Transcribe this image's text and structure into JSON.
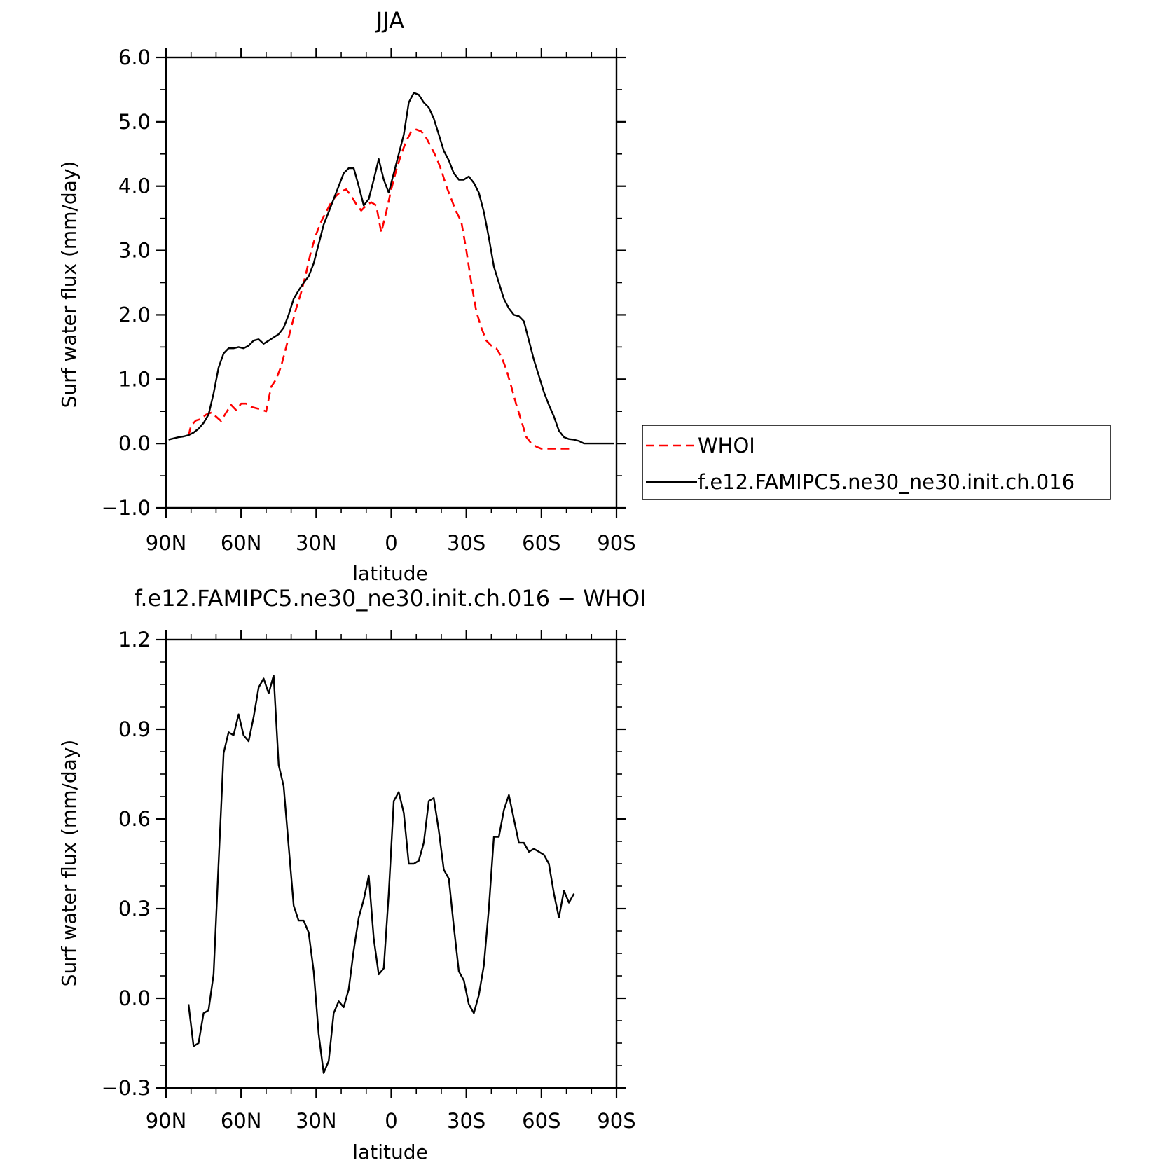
{
  "chart_data": [
    {
      "type": "line",
      "title": "JJA",
      "xlabel": "latitude",
      "ylabel": "Surf water flux (mm/day)",
      "xlim": [
        90,
        -90
      ],
      "ylim": [
        -1.0,
        6.0
      ],
      "xticks": [
        90,
        60,
        30,
        0,
        -30,
        -60,
        -90
      ],
      "xtick_labels": [
        "90N",
        "60N",
        "30N",
        "0",
        "30S",
        "60S",
        "90S"
      ],
      "yticks": [
        -1.0,
        0.0,
        1.0,
        2.0,
        3.0,
        4.0,
        5.0,
        6.0
      ],
      "ytick_labels": [
        "−1.0",
        "0.0",
        "1.0",
        "2.0",
        "3.0",
        "4.0",
        "5.0",
        "6.0"
      ],
      "legend": "right",
      "series": [
        {
          "name": "WHOI",
          "color": "#ff0000",
          "dash": "dashed",
          "x": [
            81,
            80,
            78,
            76,
            74,
            72,
            70,
            68,
            66,
            64,
            62,
            60,
            58,
            56,
            54,
            52,
            50,
            48,
            46,
            44,
            42,
            40,
            38,
            36,
            34,
            32,
            30,
            28,
            26,
            24,
            22,
            20,
            18,
            16,
            14,
            12,
            10,
            8,
            6,
            4,
            2,
            0,
            -2,
            -4,
            -6,
            -8,
            -10,
            -12,
            -14,
            -16,
            -18,
            -20,
            -22,
            -24,
            -26,
            -28,
            -30,
            -32,
            -34,
            -36,
            -38,
            -40,
            -42,
            -44,
            -46,
            -48,
            -50,
            -52,
            -54,
            -56,
            -58,
            -60,
            -62,
            -64,
            -66,
            -68,
            -70,
            -72
          ],
          "y": [
            0.12,
            0.28,
            0.36,
            0.38,
            0.45,
            0.48,
            0.42,
            0.35,
            0.48,
            0.6,
            0.52,
            0.62,
            0.62,
            0.57,
            0.55,
            0.53,
            0.5,
            0.88,
            1.0,
            1.2,
            1.5,
            1.8,
            2.1,
            2.35,
            2.65,
            3.0,
            3.25,
            3.45,
            3.6,
            3.75,
            3.85,
            3.92,
            3.95,
            3.85,
            3.72,
            3.62,
            3.7,
            3.75,
            3.7,
            3.28,
            3.6,
            3.95,
            4.25,
            4.5,
            4.7,
            4.85,
            4.88,
            4.85,
            4.75,
            4.6,
            4.45,
            4.25,
            4.0,
            3.8,
            3.6,
            3.45,
            3.0,
            2.5,
            2.05,
            1.8,
            1.6,
            1.52,
            1.48,
            1.35,
            1.15,
            0.88,
            0.6,
            0.35,
            0.1,
            0.0,
            -0.05,
            -0.08,
            -0.08,
            -0.08,
            -0.08,
            -0.08,
            -0.08,
            -0.08
          ]
        },
        {
          "name": "f.e12.FAMIPC5.ne30_ne30.init.ch.016",
          "color": "#000000",
          "dash": "solid",
          "x": [
            89,
            87,
            85,
            83,
            81,
            79,
            77,
            75,
            73,
            71,
            69,
            67,
            65,
            63,
            61,
            59,
            57,
            55,
            53,
            51,
            49,
            47,
            45,
            43,
            41,
            39,
            37,
            35,
            33,
            31,
            29,
            27,
            25,
            23,
            21,
            19,
            17,
            15,
            13,
            11,
            9,
            7,
            5,
            3,
            1,
            -1,
            -3,
            -5,
            -7,
            -9,
            -11,
            -13,
            -15,
            -17,
            -19,
            -21,
            -23,
            -25,
            -27,
            -29,
            -31,
            -33,
            -35,
            -37,
            -39,
            -41,
            -43,
            -45,
            -47,
            -49,
            -51,
            -53,
            -55,
            -57,
            -59,
            -61,
            -63,
            -65,
            -67,
            -69,
            -71,
            -73,
            -75,
            -77,
            -79,
            -81,
            -83,
            -85,
            -87,
            -89
          ],
          "y": [
            0.06,
            0.08,
            0.1,
            0.11,
            0.13,
            0.17,
            0.23,
            0.32,
            0.45,
            0.78,
            1.18,
            1.4,
            1.48,
            1.48,
            1.5,
            1.48,
            1.52,
            1.6,
            1.62,
            1.55,
            1.6,
            1.65,
            1.7,
            1.8,
            2.0,
            2.25,
            2.38,
            2.5,
            2.6,
            2.8,
            3.1,
            3.4,
            3.6,
            3.8,
            4.0,
            4.2,
            4.28,
            4.28,
            4.0,
            3.7,
            3.8,
            4.1,
            4.42,
            4.1,
            3.9,
            4.2,
            4.5,
            4.8,
            5.3,
            5.45,
            5.42,
            5.3,
            5.22,
            5.05,
            4.8,
            4.55,
            4.4,
            4.2,
            4.1,
            4.1,
            4.15,
            4.05,
            3.9,
            3.6,
            3.2,
            2.75,
            2.5,
            2.25,
            2.1,
            2.0,
            1.98,
            1.9,
            1.6,
            1.3,
            1.05,
            0.8,
            0.6,
            0.42,
            0.2,
            0.1,
            0.07,
            0.06,
            0.04,
            0.0,
            0.0,
            0.0,
            0.0,
            0.0,
            0.0,
            0.0
          ]
        }
      ]
    },
    {
      "type": "line",
      "title": "f.e12.FAMIPC5.ne30_ne30.init.ch.016 − WHOI",
      "xlabel": "latitude",
      "ylabel": "Surf water flux (mm/day)",
      "xlim": [
        90,
        -90
      ],
      "ylim": [
        -0.3,
        1.2
      ],
      "xticks": [
        90,
        60,
        30,
        0,
        -30,
        -60,
        -90
      ],
      "xtick_labels": [
        "90N",
        "60N",
        "30N",
        "0",
        "30S",
        "60S",
        "90S"
      ],
      "yticks": [
        -0.3,
        0.0,
        0.3,
        0.6,
        0.9,
        1.2
      ],
      "ytick_labels": [
        "−0.3",
        "0.0",
        "0.3",
        "0.6",
        "0.9",
        "1.2"
      ],
      "series": [
        {
          "color": "#000000",
          "dash": "solid",
          "x": [
            81,
            79,
            77,
            75,
            73,
            71,
            69,
            67,
            65,
            63,
            61,
            59,
            57,
            55,
            53,
            51,
            49,
            47,
            45,
            43,
            41,
            39,
            37,
            35,
            33,
            31,
            29,
            27,
            25,
            23,
            21,
            19,
            17,
            15,
            13,
            11,
            9,
            7,
            5,
            3,
            1,
            -1,
            -3,
            -5,
            -7,
            -9,
            -11,
            -13,
            -15,
            -17,
            -19,
            -21,
            -23,
            -25,
            -27,
            -29,
            -31,
            -33,
            -35,
            -37,
            -39,
            -41,
            -43,
            -45,
            -47,
            -49,
            -51,
            -53,
            -55,
            -57,
            -59,
            -61,
            -63,
            -65,
            -67,
            -69,
            -71,
            -73
          ],
          "y": [
            -0.02,
            -0.16,
            -0.15,
            -0.05,
            -0.04,
            0.08,
            0.45,
            0.82,
            0.89,
            0.88,
            0.95,
            0.88,
            0.86,
            0.94,
            1.04,
            1.07,
            1.02,
            1.08,
            0.78,
            0.71,
            0.51,
            0.31,
            0.26,
            0.26,
            0.22,
            0.09,
            -0.12,
            -0.25,
            -0.21,
            -0.05,
            -0.01,
            -0.03,
            0.03,
            0.16,
            0.27,
            0.33,
            0.41,
            0.2,
            0.08,
            0.1,
            0.35,
            0.66,
            0.69,
            0.62,
            0.45,
            0.45,
            0.46,
            0.52,
            0.66,
            0.67,
            0.56,
            0.43,
            0.4,
            0.24,
            0.09,
            0.06,
            -0.02,
            -0.05,
            0.01,
            0.11,
            0.3,
            0.54,
            0.54,
            0.63,
            0.68,
            0.6,
            0.52,
            0.52,
            0.49,
            0.5,
            0.49,
            0.48,
            0.45,
            0.35,
            0.27,
            0.36,
            0.32,
            0.35
          ]
        }
      ]
    }
  ]
}
